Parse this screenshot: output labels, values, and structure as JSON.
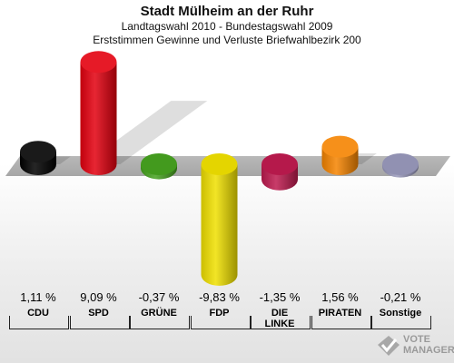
{
  "header": {
    "title": "Stadt Mülheim an der Ruhr",
    "subtitle": "Landtagswahl 2010 - Bundestagswahl 2009",
    "subtitle2": "Erststimmen Gewinne und Verluste Briefwahlbezirk 200"
  },
  "chart_data": {
    "type": "bar",
    "categories": [
      "CDU",
      "SPD",
      "GRÜNE",
      "FDP",
      "DIE LINKE",
      "PIRATEN",
      "Sonstige"
    ],
    "values": [
      1.11,
      9.09,
      -0.37,
      -9.83,
      -1.35,
      1.56,
      -0.21
    ],
    "value_labels": [
      "1,11 %",
      "9,09 %",
      "-0,37 %",
      "-9,83 %",
      "-1,35 %",
      "1,56 %",
      "-0,21 %"
    ],
    "colors": [
      "#000000",
      "#e3000f",
      "#46a220",
      "#f0e000",
      "#be1a4f",
      "#f58400",
      "#9999bb"
    ],
    "title": "Stadt Mülheim an der Ruhr",
    "subtitle": "Landtagswahl 2010 - Bundestagswahl 2009",
    "subtitle2": "Erststimmen Gewinne und Verluste Briefwahlbezirk 200",
    "xlabel": "",
    "ylabel": "",
    "ylim": [
      -10,
      10
    ]
  },
  "logo": {
    "line1": "VOTE",
    "line2": "MANAGER"
  }
}
